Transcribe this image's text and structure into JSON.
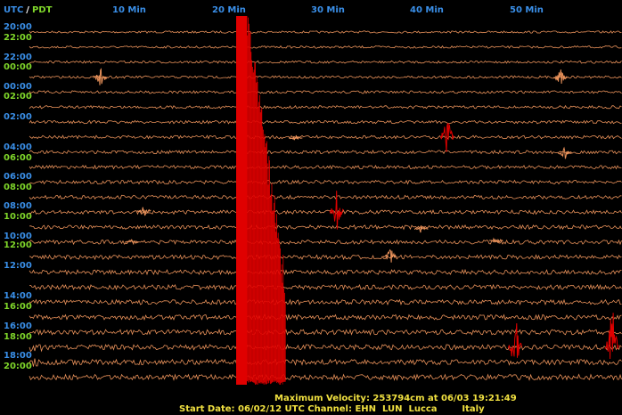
{
  "header": {
    "utc": "UTC",
    "separator": "/",
    "pdt": "PDT",
    "minutes": [
      "10 Min",
      "20 Min",
      "30 Min",
      "40 Min",
      "50 Min"
    ]
  },
  "time_labels": [
    {
      "text": "20:00",
      "color": "#3a8fe8"
    },
    {
      "text": "22:00",
      "color": "#7fd62a"
    },
    {
      "text": "22:00",
      "color": "#3a8fe8"
    },
    {
      "text": "00:00",
      "color": "#7fd62a"
    },
    {
      "text": "00:00",
      "color": "#3a8fe8"
    },
    {
      "text": "02:00",
      "color": "#7fd62a"
    },
    {
      "text": "02:00",
      "color": "#3a8fe8"
    },
    {
      "text": "04:00",
      "color": "#3a8fe8"
    },
    {
      "text": "06:00",
      "color": "#7fd62a"
    },
    {
      "text": "06:00",
      "color": "#3a8fe8"
    },
    {
      "text": "08:00",
      "color": "#7fd62a"
    },
    {
      "text": "08:00",
      "color": "#3a8fe8"
    },
    {
      "text": "10:00",
      "color": "#7fd62a"
    },
    {
      "text": "10:00",
      "color": "#3a8fe8"
    },
    {
      "text": "12:00",
      "color": "#7fd62a"
    },
    {
      "text": "12:00",
      "color": "#3a8fe8"
    },
    {
      "text": "14:00",
      "color": "#3a8fe8"
    },
    {
      "text": "16:00",
      "color": "#7fd62a"
    },
    {
      "text": "16:00",
      "color": "#3a8fe8"
    },
    {
      "text": "18:00",
      "color": "#7fd62a"
    },
    {
      "text": "18:00",
      "color": "#3a8fe8"
    },
    {
      "text": "20:00",
      "color": "#7fd62a"
    }
  ],
  "footer": {
    "line1": "Maximum Velocity: 253794cm at 06/03 19:21:49",
    "line2": "Start Date: 06/02/12 UTC Channel: EHN  LUN  Lucca        Italy"
  }
}
